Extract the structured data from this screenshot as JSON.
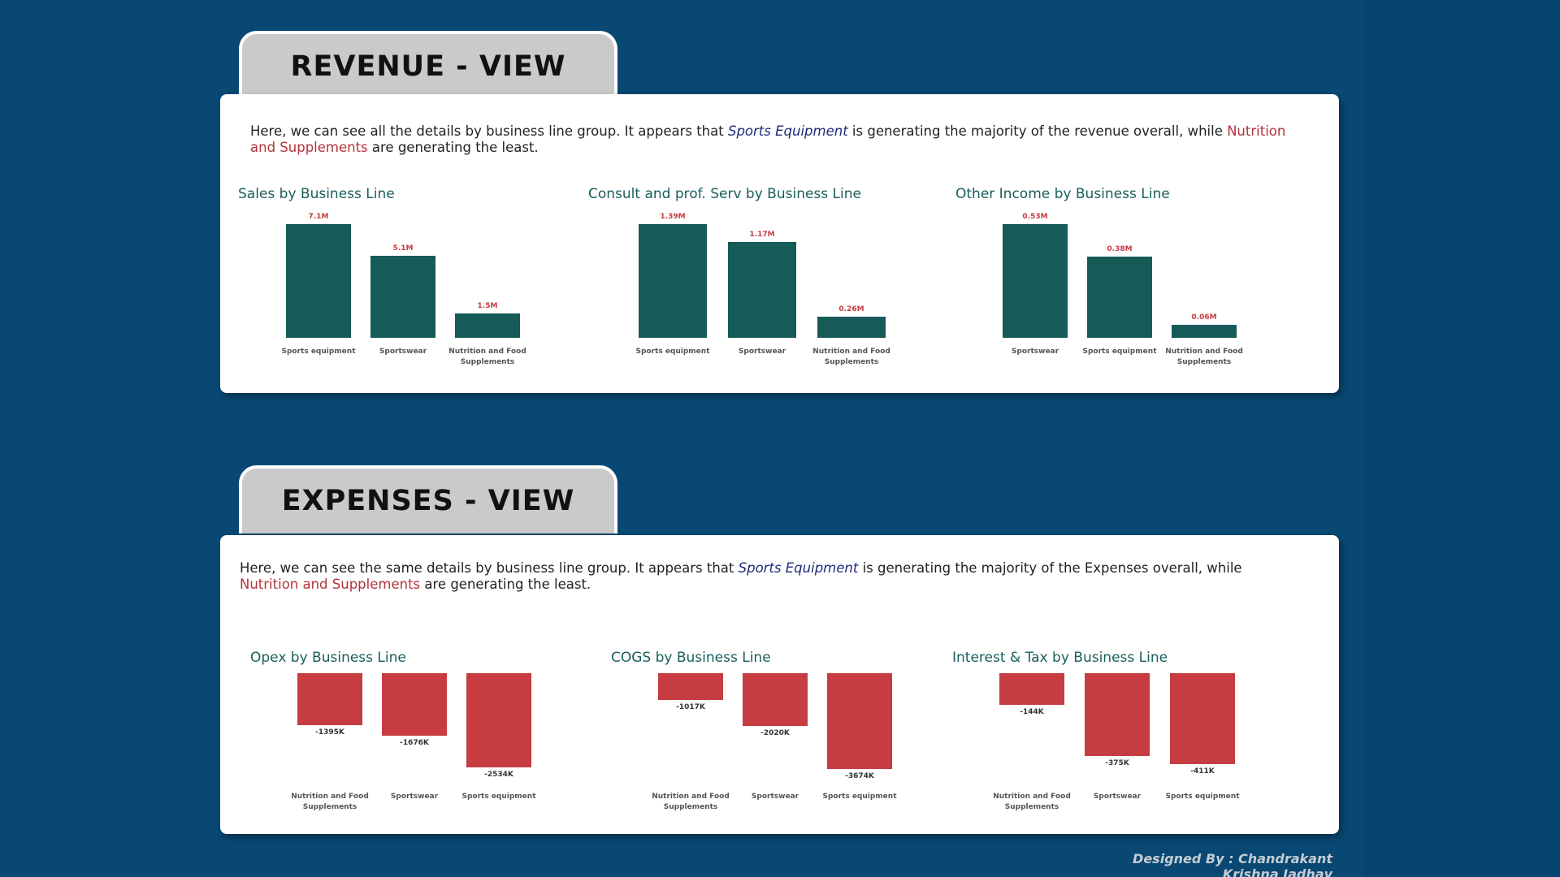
{
  "revenue": {
    "tab_title": "REVENUE - VIEW",
    "desc_a": "Here, we can see all the details by business line group. It appears that ",
    "desc_b": "Sports Equipment",
    "desc_c": " is generating the majority of the revenue overall, while ",
    "desc_d": "Nutrition and Supplements",
    "desc_e": " are generating the least."
  },
  "expenses": {
    "tab_title": "EXPENSES - VIEW",
    "desc_a": "Here, we can see the same details by business line group. It appears that ",
    "desc_b": "Sports Equipment",
    "desc_c": " is generating the majority of the Expenses overall, while ",
    "desc_d": "Nutrition and Supplements",
    "desc_e": " are generating the least."
  },
  "credit": "Designed By : Chandrakant Krishna Jadhav",
  "colors": {
    "background": "#084872",
    "revenue_bar": "#175b58",
    "expense_bar": "#c63c40",
    "highlight_blue": "#1f2a7a",
    "highlight_red": "#b3333b",
    "chart_title": "#1a5e5c"
  },
  "chart_data": [
    {
      "type": "bar",
      "title": "Sales by Business Line",
      "categories": [
        "Sports equipment",
        "Sportswear",
        "Nutrition and Food Supplements"
      ],
      "values": [
        7.1,
        5.1,
        1.5
      ],
      "value_labels": [
        "7.1M",
        "5.1M",
        "1.5M"
      ],
      "unit": "M",
      "ylim": [
        0,
        7.1
      ],
      "grid": false
    },
    {
      "type": "bar",
      "title": "Consult and prof. Serv by Business Line",
      "categories": [
        "Sports equipment",
        "Sportswear",
        "Nutrition and Food Supplements"
      ],
      "values": [
        1.39,
        1.17,
        0.26
      ],
      "value_labels": [
        "1.39M",
        "1.17M",
        "0.26M"
      ],
      "unit": "M",
      "ylim": [
        0,
        1.39
      ],
      "grid": false
    },
    {
      "type": "bar",
      "title": "Other Income by Business Line",
      "categories": [
        "Sportswear",
        "Sports equipment",
        "Nutrition and Food Supplements"
      ],
      "values": [
        0.53,
        0.38,
        0.06
      ],
      "value_labels": [
        "0.53M",
        "0.38M",
        "0.06M"
      ],
      "unit": "M",
      "ylim": [
        0,
        0.53
      ],
      "grid": false
    },
    {
      "type": "bar",
      "title": "Opex by Business Line",
      "categories": [
        "Nutrition and Food Supplements",
        "Sportswear",
        "Sports equipment"
      ],
      "values": [
        -1395,
        -1676,
        -2534
      ],
      "value_labels": [
        "-1395K",
        "-1676K",
        "-2534K"
      ],
      "unit": "K",
      "ylim": [
        -2534,
        0
      ],
      "grid": false
    },
    {
      "type": "bar",
      "title": "COGS by Business Line",
      "categories": [
        "Nutrition and Food Supplements",
        "Sportswear",
        "Sports equipment"
      ],
      "values": [
        -1017,
        -2020,
        -3674
      ],
      "value_labels": [
        "-1017K",
        "-2020K",
        "-3674K"
      ],
      "unit": "K",
      "ylim": [
        -3674,
        0
      ],
      "grid": false
    },
    {
      "type": "bar",
      "title": "Interest & Tax by Business Line",
      "categories": [
        "Nutrition and Food Supplements",
        "Sportswear",
        "Sports equipment"
      ],
      "values": [
        -144,
        -375,
        -411
      ],
      "value_labels": [
        "-144K",
        "-375K",
        "-411K"
      ],
      "unit": "K",
      "ylim": [
        -411,
        0
      ],
      "grid": false
    }
  ]
}
